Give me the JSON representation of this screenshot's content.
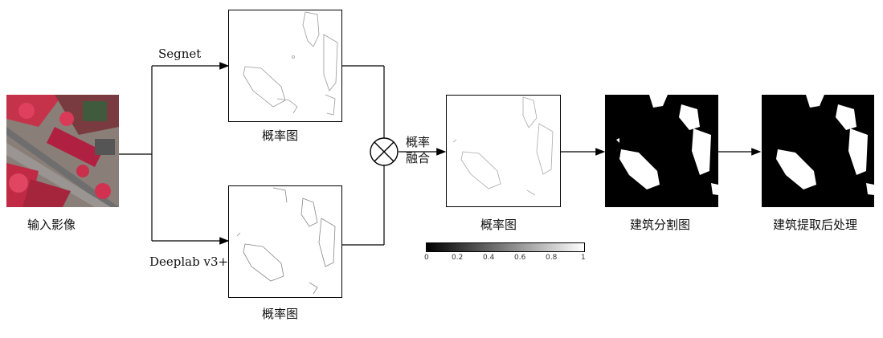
{
  "input": {
    "label": "输入影像"
  },
  "branches": {
    "top": {
      "model": "Segnet",
      "output_label": "概率图"
    },
    "bottom": {
      "model": "Deeplab v3+",
      "output_label": "概率图"
    }
  },
  "fusion": {
    "label_line1": "概率",
    "label_line2": "融合",
    "output_label": "概率图"
  },
  "colorbar": {
    "ticks": [
      "0",
      "0.2",
      "0.4",
      "0.6",
      "0.8",
      "1"
    ]
  },
  "segmentation": {
    "label": "建筑分割图"
  },
  "postprocess": {
    "label": "建筑提取后处理"
  }
}
